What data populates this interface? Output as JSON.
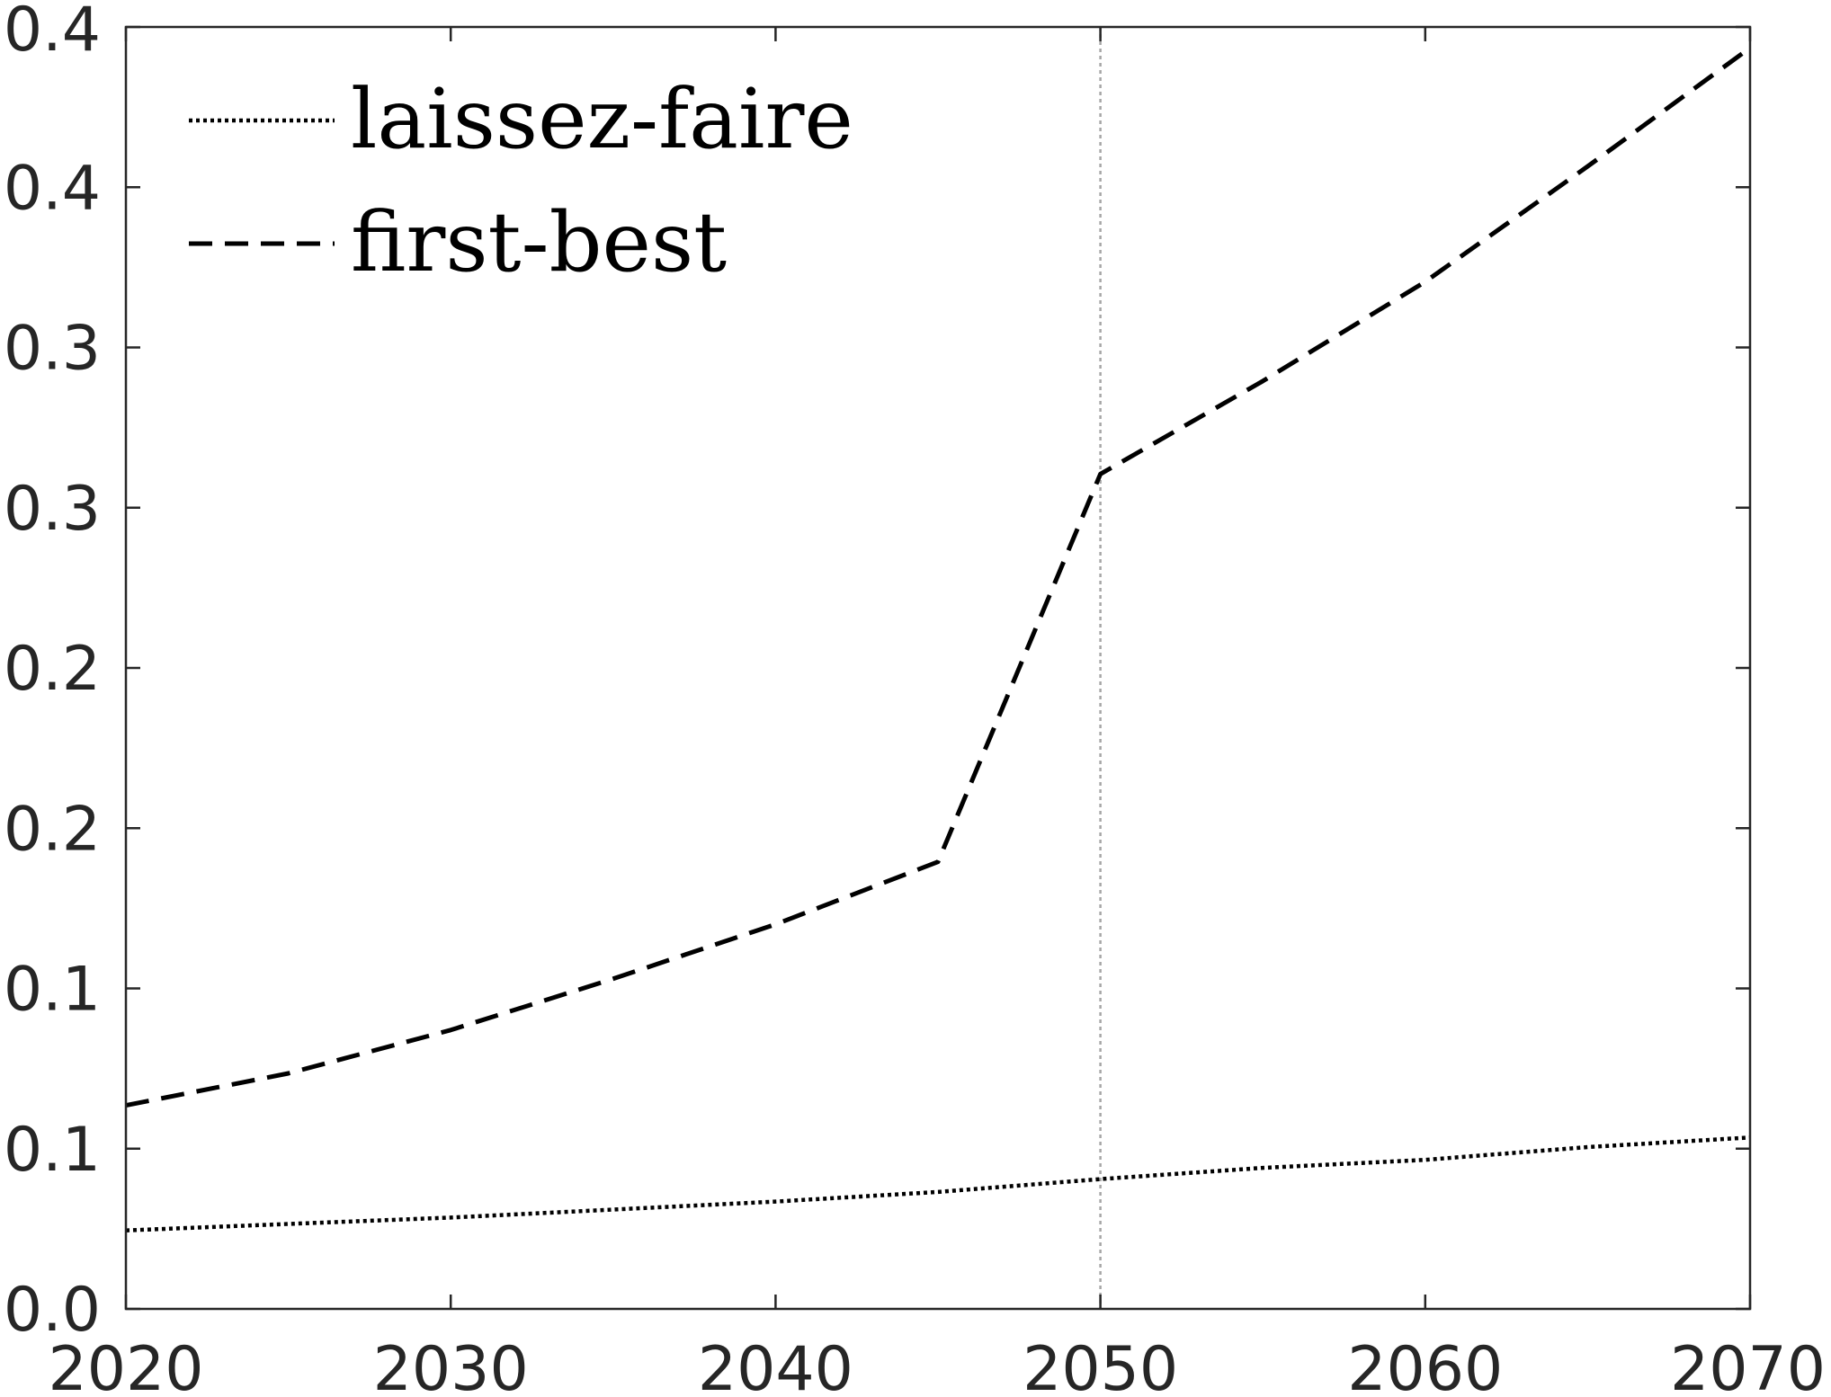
{
  "chart_data": {
    "type": "line",
    "title": "",
    "xlabel": "",
    "ylabel": "",
    "xlim": [
      2020,
      2070
    ],
    "ylim": [
      0,
      0.4
    ],
    "x_ticks": [
      2020,
      2030,
      2040,
      2050,
      2060,
      2070
    ],
    "x_tick_labels": [
      "2020",
      "2030",
      "2040",
      "2050",
      "2060",
      "2070"
    ],
    "y_ticks": [
      0,
      0.05,
      0.1,
      0.15,
      0.2,
      0.25,
      0.3,
      0.35,
      0.4
    ],
    "y_tick_labels": [
      "0.0",
      "0.1",
      "0.1",
      "0.2",
      "0.2",
      "0.3",
      "0.3",
      "0.4",
      "0.4"
    ],
    "grid": false,
    "legend_position": "top-left",
    "reference_line": {
      "x": 2050,
      "style": "dotted",
      "color": "#a6a6a6"
    },
    "series": [
      {
        "name": "laissez-faire",
        "style": "dotted",
        "color": "#000000",
        "x": [
          2020,
          2025,
          2030,
          2035,
          2040,
          2045,
          2050,
          2055,
          2060,
          2065,
          2070
        ],
        "y": [
          0.0245,
          0.0265,
          0.0285,
          0.031,
          0.0335,
          0.0365,
          0.0405,
          0.044,
          0.0465,
          0.0505,
          0.0535
        ]
      },
      {
        "name": "first-best",
        "style": "dashed",
        "color": "#000000",
        "x": [
          2020,
          2025,
          2030,
          2035,
          2040,
          2045,
          2050,
          2055,
          2060,
          2065,
          2070
        ],
        "y": [
          0.0635,
          0.0735,
          0.087,
          0.103,
          0.12,
          0.1395,
          0.2605,
          0.2895,
          0.3205,
          0.3565,
          0.3935
        ]
      }
    ]
  }
}
